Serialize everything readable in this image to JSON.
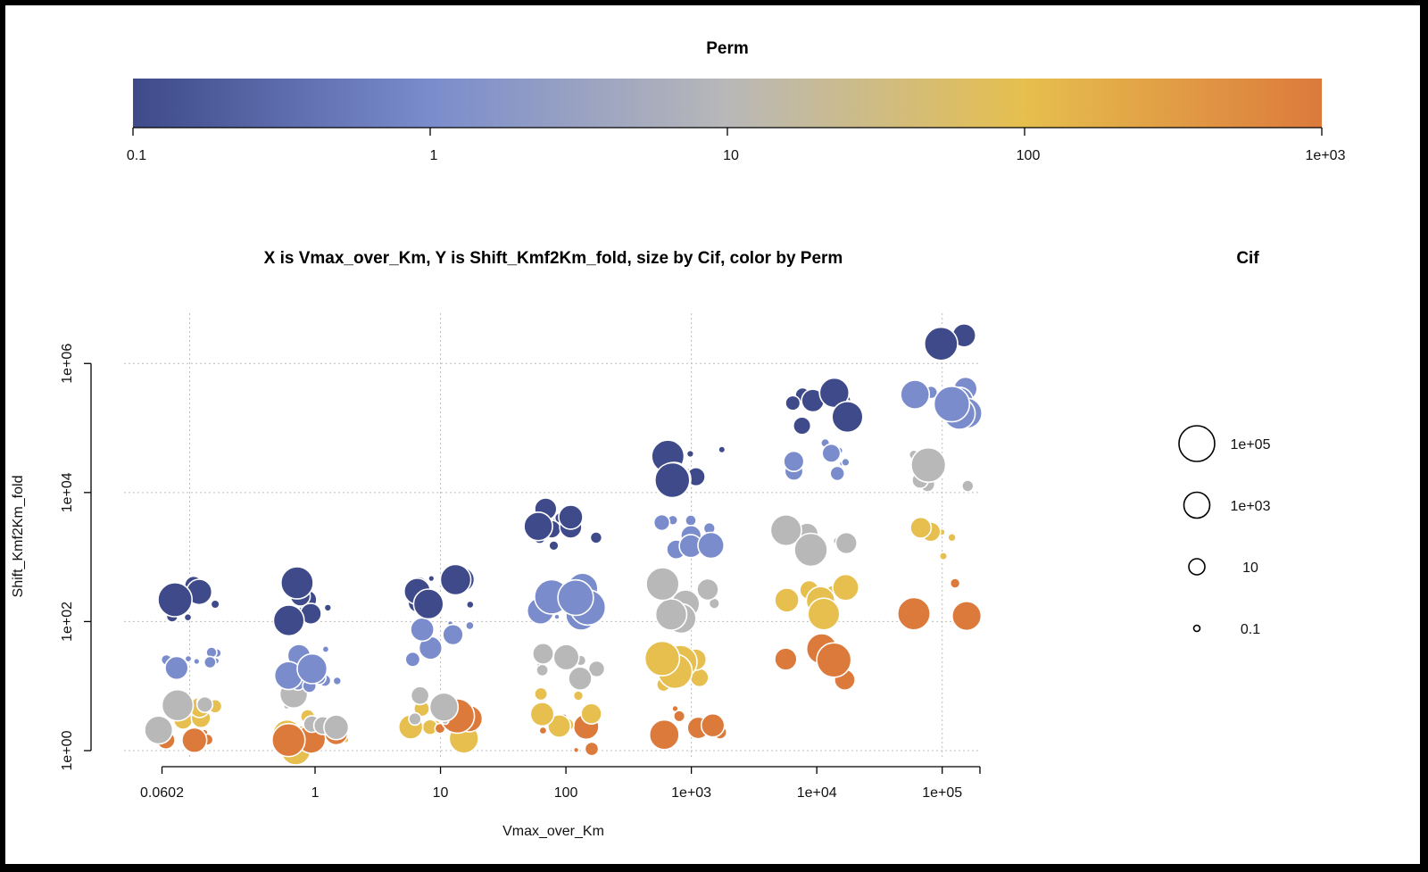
{
  "colors": {
    "perm_scale": [
      "#3e4a8a",
      "#7a8ccc",
      "#b8b8b8",
      "#e6bf4e",
      "#dc7a3c"
    ]
  },
  "chart_data": {
    "type": "scatter",
    "title": "X is Vmax_over_Km, Y is Shift_Kmf2Km_fold, size by Cif, color by Perm",
    "xlabel": "Vmax_over_Km",
    "ylabel": "Shift_Kmf2Km_fold",
    "x_scale": "log",
    "y_scale": "log",
    "xlim": [
      0.03,
      200000
    ],
    "ylim": [
      0.8,
      6000000
    ],
    "x_ticks": [
      {
        "value": 0.0602,
        "label": "0.0602"
      },
      {
        "value": 1,
        "label": "1"
      },
      {
        "value": 10,
        "label": "10"
      },
      {
        "value": 100,
        "label": "100"
      },
      {
        "value": 1000,
        "label": "1e+03"
      },
      {
        "value": 10000,
        "label": "1e+04"
      },
      {
        "value": 100000,
        "label": "1e+05"
      }
    ],
    "y_ticks": [
      {
        "value": 1,
        "label": "1e+00"
      },
      {
        "value": 100,
        "label": "1e+02"
      },
      {
        "value": 10000,
        "label": "1e+04"
      },
      {
        "value": 1000000,
        "label": "1e+06"
      }
    ],
    "x_grid": [
      0.1,
      10,
      1000,
      100000
    ],
    "y_grid": [
      1,
      100,
      10000,
      1000000
    ],
    "grid": true,
    "color_legend": {
      "title": "Perm",
      "position": "top",
      "scale": "log",
      "range": [
        0.1,
        1000
      ],
      "ticks": [
        {
          "value": 0.1,
          "label": "0.1"
        },
        {
          "value": 1,
          "label": "1"
        },
        {
          "value": 10,
          "label": "10"
        },
        {
          "value": 100,
          "label": "100"
        },
        {
          "value": 1000,
          "label": "1e+03"
        }
      ]
    },
    "size_legend": {
      "title": "Cif",
      "position": "right",
      "entries": [
        {
          "value": 100000,
          "label": "1e+05"
        },
        {
          "value": 1000,
          "label": "1e+03"
        },
        {
          "value": 10,
          "label": "10"
        },
        {
          "value": 0.1,
          "label": "0.1"
        }
      ]
    },
    "clusters": [
      {
        "x": 0.1,
        "y": 2.5,
        "perm": 1000,
        "n": 6
      },
      {
        "x": 0.1,
        "y": 2.5,
        "perm": 100,
        "n": 4
      },
      {
        "x": 0.1,
        "y": 3.5,
        "perm": 10,
        "n": 4
      },
      {
        "x": 0.1,
        "y": 20,
        "perm": 1,
        "n": 8
      },
      {
        "x": 0.1,
        "y": 200,
        "perm": 0.1,
        "n": 9
      },
      {
        "x": 1,
        "y": 2,
        "perm": 100,
        "n": 7
      },
      {
        "x": 1,
        "y": 2.5,
        "perm": 1000,
        "n": 4
      },
      {
        "x": 1,
        "y": 4,
        "perm": 10,
        "n": 5
      },
      {
        "x": 1,
        "y": 20,
        "perm": 1,
        "n": 10
      },
      {
        "x": 1,
        "y": 200,
        "perm": 0.1,
        "n": 10
      },
      {
        "x": 10,
        "y": 2.5,
        "perm": 100,
        "n": 7
      },
      {
        "x": 10,
        "y": 3,
        "perm": 1000,
        "n": 5
      },
      {
        "x": 10,
        "y": 5,
        "perm": 10,
        "n": 6
      },
      {
        "x": 10,
        "y": 50,
        "perm": 1,
        "n": 8
      },
      {
        "x": 10,
        "y": 300,
        "perm": 0.1,
        "n": 10
      },
      {
        "x": 100,
        "y": 2,
        "perm": 1000,
        "n": 6
      },
      {
        "x": 100,
        "y": 4,
        "perm": 100,
        "n": 6
      },
      {
        "x": 100,
        "y": 25,
        "perm": 10,
        "n": 9
      },
      {
        "x": 100,
        "y": 200,
        "perm": 1,
        "n": 10
      },
      {
        "x": 100,
        "y": 3000,
        "perm": 0.1,
        "n": 12
      },
      {
        "x": 1000,
        "y": 3,
        "perm": 1000,
        "n": 6
      },
      {
        "x": 1000,
        "y": 20,
        "perm": 100,
        "n": 6
      },
      {
        "x": 1000,
        "y": 200,
        "perm": 10,
        "n": 9
      },
      {
        "x": 1000,
        "y": 2000,
        "perm": 1,
        "n": 10
      },
      {
        "x": 1000,
        "y": 30000,
        "perm": 0.1,
        "n": 12
      },
      {
        "x": 10000,
        "y": 20,
        "perm": 1000,
        "n": 7
      },
      {
        "x": 10000,
        "y": 200,
        "perm": 100,
        "n": 9
      },
      {
        "x": 10000,
        "y": 1500,
        "perm": 10,
        "n": 9
      },
      {
        "x": 10000,
        "y": 30000,
        "perm": 1,
        "n": 8
      },
      {
        "x": 10000,
        "y": 200000,
        "perm": 0.1,
        "n": 12
      },
      {
        "x": 100000,
        "y": 200,
        "perm": 1000,
        "n": 4
      },
      {
        "x": 100000,
        "y": 1500,
        "perm": 100,
        "n": 5
      },
      {
        "x": 100000,
        "y": 20000,
        "perm": 10,
        "n": 6
      },
      {
        "x": 100000,
        "y": 300000,
        "perm": 1,
        "n": 7
      },
      {
        "x": 100000,
        "y": 3000000,
        "perm": 0.1,
        "n": 5
      }
    ]
  }
}
